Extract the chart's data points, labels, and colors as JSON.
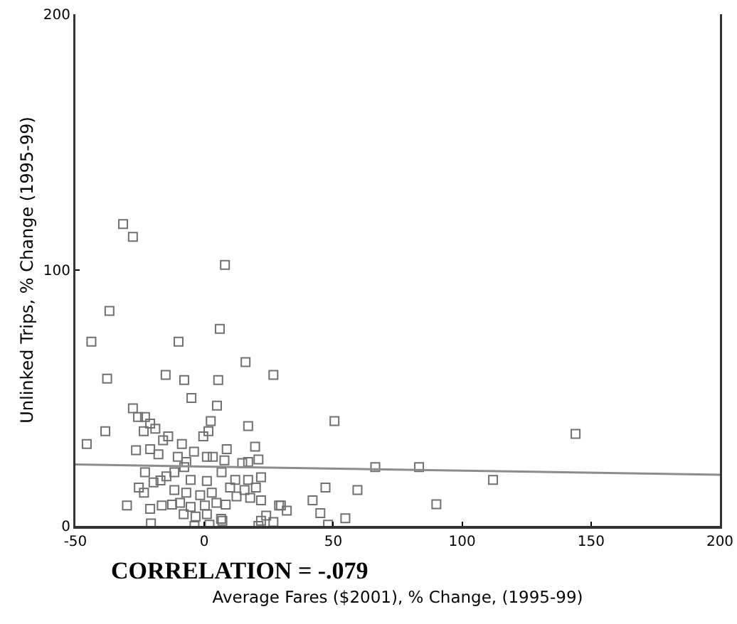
{
  "chart_data": {
    "type": "scatter",
    "xlabel": "Average Fares ($2001), % Change, (1995-99)",
    "ylabel": "Unlinked Trips, % Change (1995-99)",
    "annotations": [
      "CORRELATION = -.079"
    ],
    "xlim": [
      -50,
      200
    ],
    "ylim": [
      0,
      200
    ],
    "xticks": [
      -50,
      0,
      50,
      100,
      150,
      200
    ],
    "yticks": [
      0,
      100,
      200
    ],
    "grid": false,
    "marker": "square",
    "series": [
      {
        "color": "#707070",
        "x": [
          -31.5,
          -27.7,
          8,
          -36.8,
          -43.8,
          -10,
          6,
          16,
          5.4,
          26.8,
          4.9,
          50.5,
          17,
          2.5,
          1.6,
          -0.4,
          8.7,
          19.7,
          21,
          17,
          66.3,
          83.3,
          47,
          59.4,
          90,
          42,
          29.7,
          32,
          45,
          54.7,
          24,
          48,
          21,
          26.8,
          7,
          144,
          112,
          -37.7,
          -45.6,
          -38.4,
          -15,
          -7.8,
          -5,
          -27.7,
          -25.7,
          -23,
          -21,
          -23.5,
          -19,
          -16,
          -14,
          -8.7,
          -26.5,
          -21,
          -17.8,
          -4,
          -10.3,
          -7,
          1,
          3.3,
          7.8,
          14.7,
          -23,
          -11.6,
          -7.8,
          -14.7,
          -17,
          -19.7,
          -25.4,
          -23.4,
          -11.6,
          -5.3,
          1,
          6.7,
          12,
          17,
          22,
          10,
          15.6,
          20,
          -7,
          -1.6,
          2.9,
          -30,
          -21,
          -16.5,
          -12.5,
          -9.4,
          -5.3,
          0.2,
          4.7,
          8.3,
          12.5,
          17.8,
          22,
          29,
          -8,
          -3.4,
          1,
          6.5,
          -20.7,
          -3.8,
          2,
          22
        ],
        "values": [
          118,
          113,
          102,
          84,
          72,
          72,
          77,
          64,
          57,
          59,
          47,
          41,
          39,
          41,
          37,
          35,
          30,
          31,
          26,
          25,
          23,
          23,
          15,
          14,
          8.5,
          10,
          8,
          6,
          5,
          3,
          4,
          0.5,
          0,
          1.5,
          2,
          36,
          18,
          57.6,
          32,
          37,
          59,
          57,
          50,
          46,
          42.6,
          42.6,
          40,
          37,
          38,
          33.5,
          35,
          32,
          29.6,
          30,
          28,
          29,
          27,
          25,
          27,
          27,
          25.6,
          24.6,
          21,
          21,
          23,
          19.4,
          17.8,
          17,
          15,
          13,
          14,
          18,
          17.6,
          21,
          18,
          18,
          19,
          15,
          14,
          15,
          13,
          12,
          13,
          8,
          6.7,
          8,
          8.3,
          9,
          7.4,
          8,
          9,
          8.3,
          11.5,
          11,
          10,
          8,
          4.6,
          3.7,
          4.6,
          2.8,
          1,
          0,
          0.5,
          2
        ]
      },
      {
        "type": "line",
        "color": "#8c8c8c",
        "marker": "none",
        "x": [
          -50,
          200
        ],
        "values": [
          24,
          20
        ]
      }
    ]
  }
}
